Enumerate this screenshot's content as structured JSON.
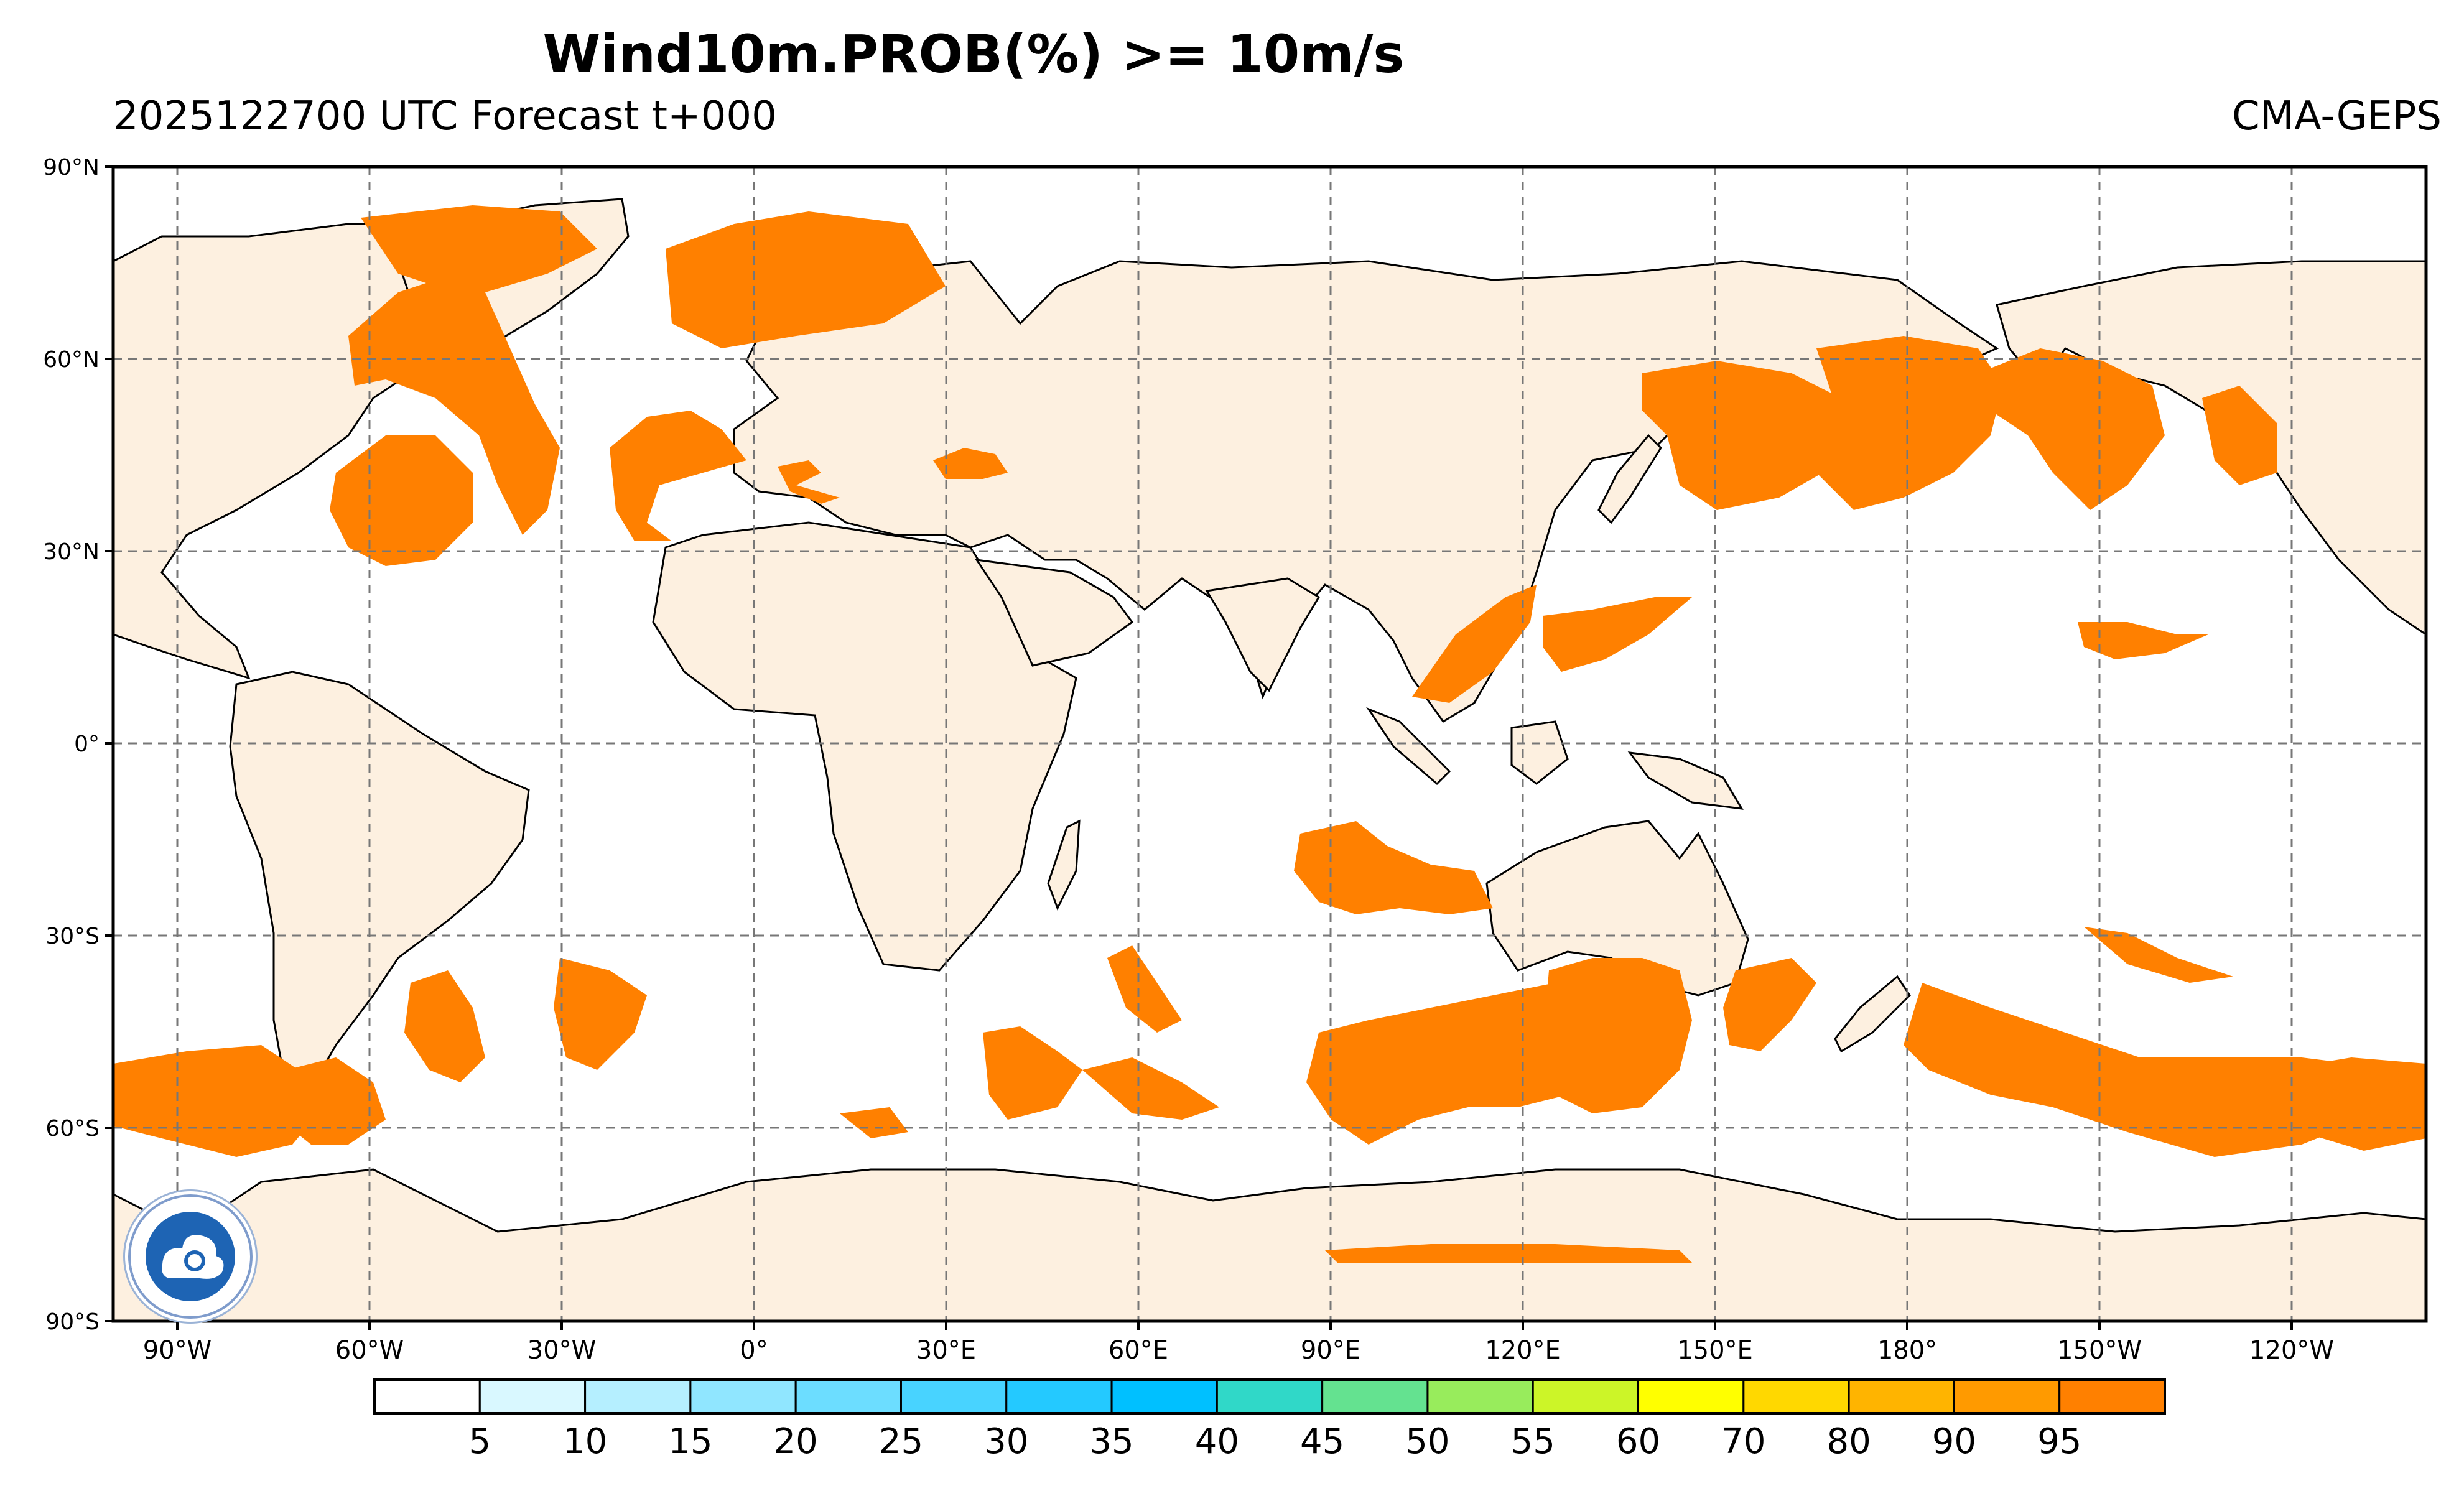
{
  "title": "Wind10m.PROB(%) >= 10m/s",
  "subtitle_left": "2025122700 UTC Forecast t+000",
  "subtitle_right": "CMA-GEPS",
  "map": {
    "projection": "PlateCarree",
    "central_longitude": 100,
    "lon_ticks": [
      "90°W",
      "60°W",
      "30°W",
      "0°",
      "30°E",
      "60°E",
      "90°E",
      "120°E",
      "150°E",
      "180°",
      "150°W",
      "120°W"
    ],
    "lat_ticks": [
      "90°N",
      "60°N",
      "30°N",
      "0°",
      "30°S",
      "60°S",
      "90°S"
    ],
    "land_color": "#fdf0e0",
    "ocean_color": "#ffffff",
    "gridlines": "dashed",
    "field_color": "#ff8000"
  },
  "colorbar": {
    "colors": [
      "#ffffff",
      "#d9f8ff",
      "#b5efff",
      "#90e6ff",
      "#6cddff",
      "#48d3ff",
      "#24c9ff",
      "#00c0ff",
      "#30d8c8",
      "#64e290",
      "#98ec5c",
      "#ccf528",
      "#ffff00",
      "#ffd800",
      "#ffb400",
      "#ff9a00",
      "#ff8000"
    ],
    "tick_labels": [
      "5",
      "10",
      "15",
      "20",
      "25",
      "30",
      "35",
      "40",
      "45",
      "50",
      "55",
      "60",
      "70",
      "80",
      "90",
      "95"
    ]
  },
  "logo": {
    "icon": "cma-logo-icon"
  }
}
